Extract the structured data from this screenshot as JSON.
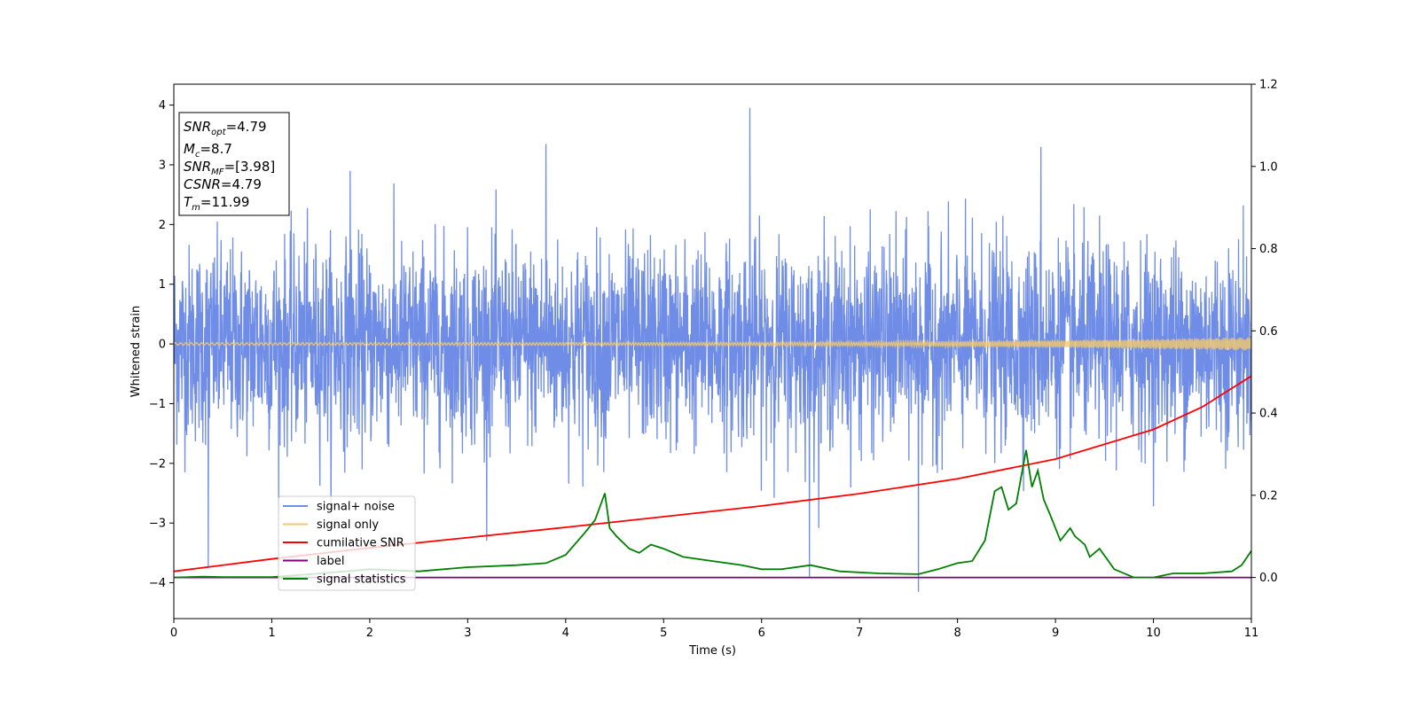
{
  "chart_data": {
    "type": "line",
    "xlabel": "Time (s)",
    "ylabel": "Whitened strain",
    "xlim": [
      0,
      11
    ],
    "ylim": [
      -4.6,
      4.35
    ],
    "y2lim": [
      -0.1,
      1.2
    ],
    "xticks": [
      "0",
      "1",
      "2",
      "3",
      "4",
      "5",
      "6",
      "7",
      "8",
      "9",
      "10",
      "11"
    ],
    "yticks": [
      "−4",
      "−3",
      "−2",
      "−1",
      "0",
      "1",
      "2",
      "3",
      "4"
    ],
    "y2ticks": [
      "0.0",
      "0.2",
      "0.4",
      "0.6",
      "0.8",
      "1.0",
      "1.2"
    ],
    "grid": false,
    "legend_position": "lower-left",
    "info_box": {
      "snr_opt": "=4.79",
      "mc": "=8.7",
      "snr_mf": "=[3.98]",
      "csnr": "=4.79",
      "tm": "=11.99"
    },
    "series": [
      {
        "name": "signal+ noise",
        "color": "#6f8de6",
        "axis": "left",
        "kind": "noise",
        "amplitude": 1.0,
        "peaks": [
          [
            0.35,
            -3.75
          ],
          [
            5.88,
            3.95
          ],
          [
            7.6,
            -4.15
          ],
          [
            1.8,
            2.9
          ],
          [
            3.8,
            3.35
          ],
          [
            6.49,
            -3.9
          ],
          [
            8.85,
            3.3
          ]
        ]
      },
      {
        "name": "signal only",
        "color": "#f5c96a",
        "axis": "left",
        "kind": "chirp",
        "start_amplitude": 0.02,
        "end_amplitude": 0.11
      },
      {
        "name": "cumilative SNR",
        "color": "#ff0000",
        "axis": "right",
        "x": [
          0,
          1,
          2,
          3,
          4,
          5,
          6,
          7,
          8,
          9,
          10,
          10.5,
          11
        ],
        "y": [
          0.015,
          0.045,
          0.072,
          0.097,
          0.122,
          0.148,
          0.174,
          0.204,
          0.24,
          0.288,
          0.36,
          0.415,
          0.49
        ]
      },
      {
        "name": "label",
        "color": "#800080",
        "axis": "right",
        "x": [
          0,
          11
        ],
        "y": [
          0.0,
          0.0
        ]
      },
      {
        "name": "signal statistics",
        "color": "#008000",
        "axis": "right",
        "x": [
          0,
          0.3,
          0.5,
          1,
          1.5,
          2,
          2.5,
          3,
          3.5,
          3.8,
          4,
          4.2,
          4.3,
          4.4,
          4.45,
          4.52,
          4.65,
          4.75,
          4.87,
          5,
          5.2,
          5.5,
          5.8,
          6,
          6.2,
          6.5,
          6.8,
          7.2,
          7.6,
          7.8,
          8,
          8.15,
          8.28,
          8.38,
          8.45,
          8.52,
          8.6,
          8.7,
          8.76,
          8.82,
          8.88,
          8.95,
          9.05,
          9.15,
          9.2,
          9.3,
          9.35,
          9.45,
          9.6,
          9.8,
          10,
          10.2,
          10.5,
          10.8,
          10.9,
          11
        ],
        "y": [
          0.0,
          0.002,
          0.001,
          0.001,
          0.01,
          0.02,
          0.015,
          0.025,
          0.03,
          0.035,
          0.055,
          0.11,
          0.14,
          0.205,
          0.12,
          0.1,
          0.07,
          0.06,
          0.08,
          0.07,
          0.05,
          0.04,
          0.03,
          0.02,
          0.02,
          0.03,
          0.015,
          0.01,
          0.008,
          0.02,
          0.035,
          0.04,
          0.09,
          0.21,
          0.22,
          0.165,
          0.18,
          0.31,
          0.22,
          0.26,
          0.19,
          0.15,
          0.09,
          0.12,
          0.1,
          0.08,
          0.05,
          0.07,
          0.02,
          0.0,
          0.0,
          0.01,
          0.01,
          0.015,
          0.03,
          0.065
        ]
      }
    ]
  }
}
